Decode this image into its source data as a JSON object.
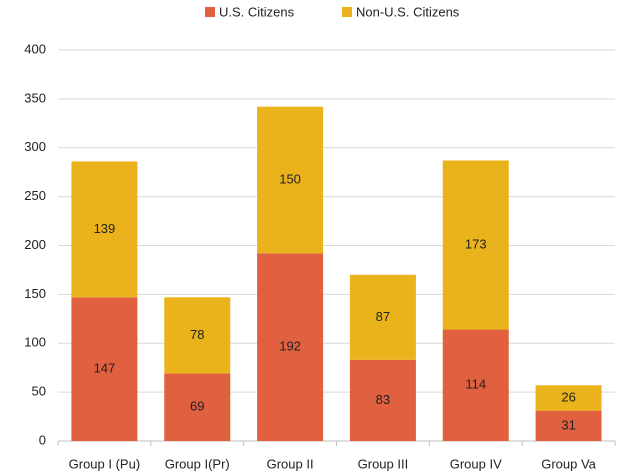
{
  "chart_data": {
    "type": "stacked_bar",
    "categories": [
      "Group I (Pu)",
      "Group I(Pr)",
      "Group II",
      "Group III",
      "Group IV",
      "Group Va"
    ],
    "series": [
      {
        "name": "U.S. Citizens",
        "color": "#e0603f",
        "values": [
          147,
          69,
          192,
          83,
          114,
          31
        ]
      },
      {
        "name": "Non-U.S. Citizens",
        "color": "#ebb31b",
        "values": [
          139,
          78,
          150,
          87,
          173,
          26
        ]
      }
    ],
    "ylim": [
      0,
      400
    ],
    "yticks": [
      0,
      50,
      100,
      150,
      200,
      250,
      300,
      350,
      400
    ],
    "grid": true,
    "legend": "top"
  }
}
